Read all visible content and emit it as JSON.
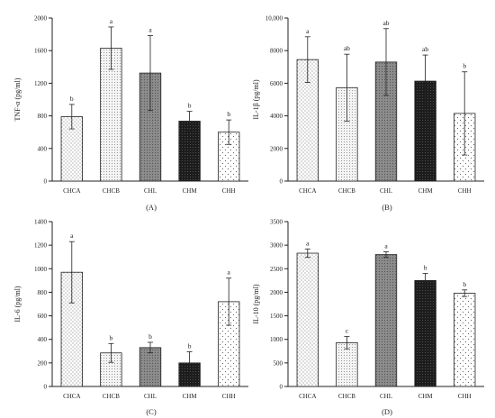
{
  "chart_data": [
    {
      "type": "bar",
      "panel_label": "(A)",
      "ylabel": "TNF-α (pg/ml)",
      "ylim": [
        0,
        2000
      ],
      "yticks": [
        0,
        400,
        800,
        1200,
        1600,
        2000
      ],
      "categories": [
        "CHCA",
        "CHCB",
        "CHL",
        "CHM",
        "CHH"
      ],
      "values": [
        790,
        1630,
        1325,
        735,
        600
      ],
      "errors": [
        150,
        260,
        460,
        120,
        150
      ],
      "letters": [
        "b",
        "a",
        "a",
        "b",
        "b"
      ]
    },
    {
      "type": "bar",
      "panel_label": "(B)",
      "ylabel": "IL-1β (pg/ml)",
      "ylim": [
        0,
        10000
      ],
      "yticks": [
        0,
        2000,
        4000,
        6000,
        8000,
        10000
      ],
      "ytick_labels": [
        "0",
        "2000",
        "4000",
        "6000",
        "8000",
        "10,000"
      ],
      "categories": [
        "CHCA",
        "CHCB",
        "CHL",
        "CHM",
        "CHH"
      ],
      "values": [
        7450,
        5730,
        7300,
        6130,
        4150
      ],
      "errors": [
        1400,
        2050,
        2050,
        1600,
        2550
      ],
      "letters": [
        "a",
        "ab",
        "ab",
        "ab",
        "b"
      ]
    },
    {
      "type": "bar",
      "panel_label": "(C)",
      "ylabel": "IL-6 (pg/ml)",
      "ylim": [
        0,
        1400
      ],
      "yticks": [
        0,
        200,
        400,
        600,
        800,
        1000,
        1200,
        1400
      ],
      "categories": [
        "CHCA",
        "CHCB",
        "CHL",
        "CHM",
        "CHH"
      ],
      "values": [
        970,
        285,
        330,
        200,
        720
      ],
      "errors": [
        260,
        80,
        45,
        95,
        200
      ],
      "letters": [
        "a",
        "b",
        "b",
        "b",
        "a"
      ]
    },
    {
      "type": "bar",
      "panel_label": "(D)",
      "ylabel": "IL-10 (pg/ml)",
      "ylim": [
        0,
        3500
      ],
      "yticks": [
        0,
        500,
        1000,
        1500,
        2000,
        2500,
        3000,
        3500
      ],
      "categories": [
        "CHCA",
        "CHCB",
        "CHL",
        "CHM",
        "CHH"
      ],
      "values": [
        2830,
        930,
        2800,
        2250,
        1980
      ],
      "errors": [
        90,
        130,
        60,
        150,
        70
      ],
      "letters": [
        "a",
        "c",
        "a",
        "b",
        "b"
      ]
    }
  ],
  "colors": {
    "CHCA": "#ffffff",
    "CHCB": "#f2f2f2",
    "CHL": "#8a8a8a",
    "CHM": "#1f1f1f",
    "CHH": "#ffffff"
  }
}
